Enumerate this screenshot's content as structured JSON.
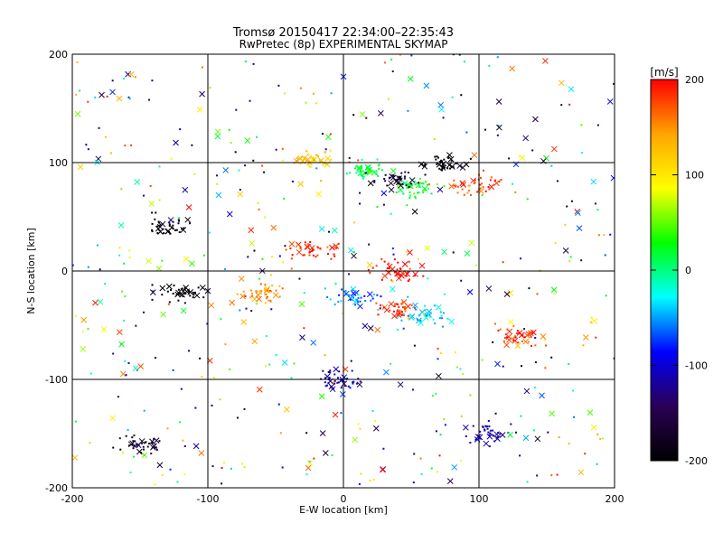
{
  "chart_data": {
    "type": "scatter",
    "title": "Tromsø 20150417 22:34:00–22:35:43",
    "subtitle": "RwPretec (8p) EXPERIMENTAL SKYMAP",
    "xlabel": "E-W location [km]",
    "ylabel": "N-S location [km]",
    "xlim": [
      -200,
      200
    ],
    "ylim": [
      -200,
      200
    ],
    "x_ticks": [
      "-200",
      "-100",
      "0",
      "100",
      "200"
    ],
    "y_ticks": [
      "-200",
      "-100",
      "0",
      "100",
      "200"
    ],
    "grid": true,
    "colorbar": {
      "label": "[m/s]",
      "range": [
        -200,
        200
      ],
      "ticks": [
        "200",
        "100",
        "0",
        "-100",
        "-200"
      ],
      "colormap": [
        "#000000",
        "#2a0055",
        "#0000ff",
        "#00ffff",
        "#00ff00",
        "#ffff00",
        "#ffa500",
        "#ff0000"
      ]
    },
    "marker_types": [
      "dot",
      "cross"
    ],
    "clusters": [
      {
        "x": -25,
        "y": 103,
        "velocity": 120
      },
      {
        "x": 20,
        "y": 93,
        "velocity": 10
      },
      {
        "x": 55,
        "y": 77,
        "velocity": 20
      },
      {
        "x": 40,
        "y": 85,
        "velocity": -170
      },
      {
        "x": 75,
        "y": 99,
        "velocity": -200
      },
      {
        "x": 10,
        "y": -25,
        "velocity": -60
      },
      {
        "x": 40,
        "y": -35,
        "velocity": 180
      },
      {
        "x": 60,
        "y": -40,
        "velocity": -40
      },
      {
        "x": -20,
        "y": 20,
        "velocity": 190
      },
      {
        "x": -60,
        "y": -20,
        "velocity": 150
      },
      {
        "x": -130,
        "y": 40,
        "velocity": -190
      },
      {
        "x": -120,
        "y": -20,
        "velocity": -200
      },
      {
        "x": 110,
        "y": -150,
        "velocity": -110
      },
      {
        "x": -150,
        "y": -160,
        "velocity": -180
      },
      {
        "x": -5,
        "y": -100,
        "velocity": -120
      },
      {
        "x": 40,
        "y": 0,
        "velocity": 200
      },
      {
        "x": 100,
        "y": 80,
        "velocity": 180
      },
      {
        "x": 130,
        "y": -60,
        "velocity": 180
      }
    ]
  }
}
